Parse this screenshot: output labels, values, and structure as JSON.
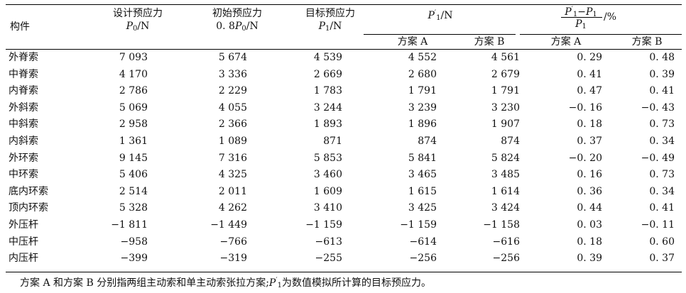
{
  "table": {
    "headers": {
      "component": "构件",
      "design": {
        "line1": "设计预应力",
        "sym": "P",
        "sub": "0",
        "unit": "/N"
      },
      "initial": {
        "line1": "初始预应力",
        "prefix": "0. 8",
        "sym": "P",
        "sub": "0",
        "unit": "/N"
      },
      "target": {
        "line1": "目标预应力",
        "sym": "P",
        "sub": "1",
        "unit": "/N"
      },
      "sim": {
        "sym": "P",
        "sub": "1",
        "prime": "′",
        "unit": "/N"
      },
      "dev": {
        "num_sym1": "P",
        "num_prime": "′",
        "num_sub1": "1",
        "num_minus": "−",
        "num_sym2": "P",
        "num_sub2": "1",
        "den_sym": "P",
        "den_sub": "1",
        "unit": "/%"
      },
      "scheme_a": "方案 A",
      "scheme_b": "方案 B"
    },
    "rows": [
      {
        "name": "外脊索",
        "design": "7 093",
        "initial": "5 674",
        "target": "4 539",
        "sim_a": "4 552",
        "sim_b": "4 561",
        "dev_a": "0. 29",
        "dev_b": "0. 48"
      },
      {
        "name": "中脊索",
        "design": "4 170",
        "initial": "3 336",
        "target": "2 669",
        "sim_a": "2 680",
        "sim_b": "2 679",
        "dev_a": "0. 41",
        "dev_b": "0. 39"
      },
      {
        "name": "内脊索",
        "design": "2 786",
        "initial": "2 229",
        "target": "1 783",
        "sim_a": "1 791",
        "sim_b": "1 791",
        "dev_a": "0. 47",
        "dev_b": "0. 41"
      },
      {
        "name": "外斜索",
        "design": "5 069",
        "initial": "4 055",
        "target": "3 244",
        "sim_a": "3 239",
        "sim_b": "3 230",
        "dev_a": "−0. 16",
        "dev_b": "−0. 43"
      },
      {
        "name": "中斜索",
        "design": "2 958",
        "initial": "2 366",
        "target": "1 893",
        "sim_a": "1 896",
        "sim_b": "1 907",
        "dev_a": "0. 18",
        "dev_b": "0. 73"
      },
      {
        "name": "内斜索",
        "design": "1 361",
        "initial": "1 089",
        "target": "871",
        "sim_a": "874",
        "sim_b": "874",
        "dev_a": "0. 37",
        "dev_b": "0. 34"
      },
      {
        "name": "外环索",
        "design": "9 145",
        "initial": "7 316",
        "target": "5 853",
        "sim_a": "5 841",
        "sim_b": "5 824",
        "dev_a": "−0. 20",
        "dev_b": "−0. 49"
      },
      {
        "name": "中环索",
        "design": "5 406",
        "initial": "4 325",
        "target": "3 460",
        "sim_a": "3 465",
        "sim_b": "3 485",
        "dev_a": "0. 16",
        "dev_b": "0. 73"
      },
      {
        "name": "底内环索",
        "design": "2 514",
        "initial": "2 011",
        "target": "1 609",
        "sim_a": "1 615",
        "sim_b": "1 614",
        "dev_a": "0. 36",
        "dev_b": "0. 34"
      },
      {
        "name": "顶内环索",
        "design": "5 328",
        "initial": "4 262",
        "target": "3 410",
        "sim_a": "3 425",
        "sim_b": "3 424",
        "dev_a": "0. 44",
        "dev_b": "0. 41"
      },
      {
        "name": "外压杆",
        "design": "−1 811",
        "initial": "−1 449",
        "target": "−1 159",
        "sim_a": "−1 159",
        "sim_b": "−1 158",
        "dev_a": "0. 03",
        "dev_b": "−0. 11"
      },
      {
        "name": "中压杆",
        "design": "−958",
        "initial": "−766",
        "target": "−613",
        "sim_a": "−614",
        "sim_b": "−616",
        "dev_a": "0. 18",
        "dev_b": "0. 60"
      },
      {
        "name": "内压杆",
        "design": "−399",
        "initial": "−319",
        "target": "−255",
        "sim_a": "−256",
        "sim_b": "−256",
        "dev_a": "0. 39",
        "dev_b": "0. 37"
      }
    ]
  },
  "note": {
    "before": "方案 A 和方案 B 分别指两组主动索和单主动索张拉方案;",
    "sym": "P",
    "prime": "′",
    "sub": "1",
    "after": "为数值模拟所计算的目标预应力。"
  }
}
